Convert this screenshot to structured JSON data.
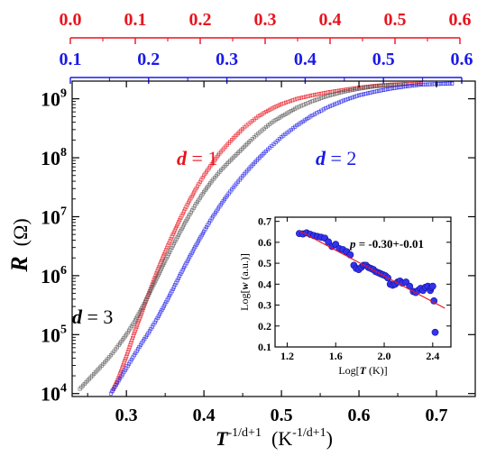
{
  "chart_data": [
    {
      "type": "scatter",
      "id": "main",
      "xlabel": {
        "base": "T",
        "exp": "-1/d+1",
        "unit_open": "(K",
        "unit_exp": "-1/d+1",
        "unit_close": ")"
      },
      "ylabel": {
        "var": "R",
        "unit": "(Ω)"
      },
      "xlim": [
        0.23,
        0.75
      ],
      "ylim_log10": [
        3.95,
        9.3
      ],
      "yscale": "log",
      "x_ticks": [
        "0.3",
        "0.4",
        "0.5",
        "0.6",
        "0.7"
      ],
      "x_tick_values": [
        0.3,
        0.4,
        0.5,
        0.6,
        0.7
      ],
      "y_ticks": [
        {
          "base": "10",
          "exp": "4",
          "value": 4
        },
        {
          "base": "10",
          "exp": "5",
          "value": 5
        },
        {
          "base": "10",
          "exp": "6",
          "value": 6
        },
        {
          "base": "10",
          "exp": "7",
          "value": 7
        },
        {
          "base": "10",
          "exp": "8",
          "value": 8
        },
        {
          "base": "10",
          "exp": "9",
          "value": 9
        }
      ],
      "top_axes": [
        {
          "color": "#e8141e",
          "lim": [
            0.0,
            0.6
          ],
          "ticks": [
            "0.0",
            "0.1",
            "0.2",
            "0.3",
            "0.4",
            "0.5",
            "0.6"
          ],
          "tick_values": [
            0.0,
            0.1,
            0.2,
            0.3,
            0.4,
            0.5,
            0.6
          ]
        },
        {
          "color": "#1a1ae8",
          "lim": [
            0.1,
            0.6
          ],
          "ticks": [
            "0.1",
            "0.2",
            "0.3",
            "0.4",
            "0.5",
            "0.6"
          ],
          "tick_values": [
            0.1,
            0.2,
            0.3,
            0.4,
            0.5,
            0.6
          ]
        }
      ],
      "series": [
        {
          "color": "#e8141e",
          "label": {
            "var": "d",
            "text": " = 1"
          },
          "points": [
            [
              0.282,
              4.05
            ],
            [
              0.285,
              4.12
            ],
            [
              0.29,
              4.27
            ],
            [
              0.3,
              4.63
            ],
            [
              0.31,
              5.02
            ],
            [
              0.32,
              5.38
            ],
            [
              0.33,
              5.74
            ],
            [
              0.34,
              6.08
            ],
            [
              0.35,
              6.4
            ],
            [
              0.36,
              6.7
            ],
            [
              0.37,
              6.98
            ],
            [
              0.38,
              7.24
            ],
            [
              0.39,
              7.48
            ],
            [
              0.4,
              7.7
            ],
            [
              0.41,
              7.89
            ],
            [
              0.42,
              8.07
            ],
            [
              0.43,
              8.22
            ],
            [
              0.44,
              8.36
            ],
            [
              0.45,
              8.49
            ],
            [
              0.46,
              8.6
            ],
            [
              0.47,
              8.7
            ],
            [
              0.48,
              8.78
            ],
            [
              0.49,
              8.85
            ],
            [
              0.5,
              8.91
            ],
            [
              0.52,
              9.0
            ],
            [
              0.54,
              9.06
            ],
            [
              0.56,
              9.11
            ],
            [
              0.58,
              9.15
            ],
            [
              0.6,
              9.19
            ],
            [
              0.62,
              9.22
            ],
            [
              0.64,
              9.24
            ],
            [
              0.66,
              9.25
            ],
            [
              0.68,
              9.26
            ]
          ]
        },
        {
          "color": "#555555",
          "label": {
            "var": "d",
            "text": " = 3"
          },
          "points": [
            [
              0.24,
              4.08
            ],
            [
              0.25,
              4.22
            ],
            [
              0.26,
              4.36
            ],
            [
              0.27,
              4.5
            ],
            [
              0.28,
              4.65
            ],
            [
              0.29,
              4.82
            ],
            [
              0.3,
              5.0
            ],
            [
              0.31,
              5.21
            ],
            [
              0.32,
              5.45
            ],
            [
              0.33,
              5.71
            ],
            [
              0.34,
              5.98
            ],
            [
              0.35,
              6.25
            ],
            [
              0.36,
              6.51
            ],
            [
              0.37,
              6.76
            ],
            [
              0.38,
              7.0
            ],
            [
              0.39,
              7.22
            ],
            [
              0.4,
              7.42
            ],
            [
              0.41,
              7.6
            ],
            [
              0.42,
              7.76
            ],
            [
              0.43,
              7.9
            ],
            [
              0.44,
              8.03
            ],
            [
              0.45,
              8.16
            ],
            [
              0.46,
              8.29
            ],
            [
              0.47,
              8.41
            ],
            [
              0.48,
              8.52
            ],
            [
              0.49,
              8.62
            ],
            [
              0.5,
              8.7
            ],
            [
              0.52,
              8.85
            ],
            [
              0.54,
              8.96
            ],
            [
              0.56,
              9.05
            ],
            [
              0.58,
              9.12
            ],
            [
              0.6,
              9.17
            ],
            [
              0.62,
              9.21
            ],
            [
              0.64,
              9.23
            ],
            [
              0.66,
              9.25
            ]
          ]
        },
        {
          "color": "#1a1ae8",
          "label": {
            "var": "d",
            "text": " = 2"
          },
          "points": [
            [
              0.28,
              4.0
            ],
            [
              0.29,
              4.22
            ],
            [
              0.3,
              4.43
            ],
            [
              0.31,
              4.65
            ],
            [
              0.32,
              4.86
            ],
            [
              0.33,
              5.06
            ],
            [
              0.34,
              5.28
            ],
            [
              0.35,
              5.52
            ],
            [
              0.36,
              5.77
            ],
            [
              0.37,
              6.03
            ],
            [
              0.38,
              6.28
            ],
            [
              0.39,
              6.52
            ],
            [
              0.4,
              6.75
            ],
            [
              0.41,
              6.97
            ],
            [
              0.42,
              7.17
            ],
            [
              0.43,
              7.36
            ],
            [
              0.44,
              7.53
            ],
            [
              0.45,
              7.69
            ],
            [
              0.46,
              7.84
            ],
            [
              0.47,
              7.98
            ],
            [
              0.48,
              8.11
            ],
            [
              0.49,
              8.23
            ],
            [
              0.5,
              8.35
            ],
            [
              0.52,
              8.55
            ],
            [
              0.54,
              8.72
            ],
            [
              0.56,
              8.86
            ],
            [
              0.58,
              8.97
            ],
            [
              0.6,
              9.06
            ],
            [
              0.62,
              9.12
            ],
            [
              0.64,
              9.17
            ],
            [
              0.66,
              9.21
            ],
            [
              0.68,
              9.24
            ],
            [
              0.7,
              9.25
            ],
            [
              0.72,
              9.26
            ]
          ]
        }
      ]
    },
    {
      "type": "scatter",
      "id": "inset",
      "xlabel": {
        "pre": "Log[",
        "var": "T",
        "post": " (K)]"
      },
      "ylabel": {
        "pre": "Log[",
        "var": "w",
        "post": " (a.u.)]"
      },
      "xlim": [
        1.1,
        2.55
      ],
      "ylim": [
        0.1,
        0.72
      ],
      "x_ticks": [
        "1.2",
        "1.6",
        "2.0",
        "2.4"
      ],
      "x_tick_values": [
        1.2,
        1.6,
        2.0,
        2.4
      ],
      "y_ticks": [
        "0.1",
        "0.2",
        "0.3",
        "0.4",
        "0.5",
        "0.6",
        "0.7"
      ],
      "y_tick_values": [
        0.1,
        0.2,
        0.3,
        0.4,
        0.5,
        0.6,
        0.7
      ],
      "annotation": {
        "var": "p",
        "text": " = -0.30+-0.01"
      },
      "fit_line": {
        "color": "#e8141e",
        "x": [
          1.3,
          2.5
        ],
        "y": [
          0.655,
          0.285
        ]
      },
      "points": [
        [
          1.3,
          0.642
        ],
        [
          1.33,
          0.64
        ],
        [
          1.36,
          0.645
        ],
        [
          1.39,
          0.638
        ],
        [
          1.42,
          0.632
        ],
        [
          1.45,
          0.628
        ],
        [
          1.48,
          0.624
        ],
        [
          1.51,
          0.62
        ],
        [
          1.54,
          0.602
        ],
        [
          1.57,
          0.58
        ],
        [
          1.6,
          0.59
        ],
        [
          1.63,
          0.57
        ],
        [
          1.66,
          0.565
        ],
        [
          1.69,
          0.555
        ],
        [
          1.72,
          0.54
        ],
        [
          1.75,
          0.49
        ],
        [
          1.77,
          0.475
        ],
        [
          1.79,
          0.47
        ],
        [
          1.81,
          0.48
        ],
        [
          1.83,
          0.49
        ],
        [
          1.85,
          0.49
        ],
        [
          1.87,
          0.48
        ],
        [
          1.89,
          0.475
        ],
        [
          1.91,
          0.47
        ],
        [
          1.93,
          0.46
        ],
        [
          1.95,
          0.455
        ],
        [
          1.97,
          0.45
        ],
        [
          1.99,
          0.445
        ],
        [
          2.01,
          0.44
        ],
        [
          2.03,
          0.43
        ],
        [
          2.05,
          0.4
        ],
        [
          2.07,
          0.395
        ],
        [
          2.09,
          0.4
        ],
        [
          2.11,
          0.41
        ],
        [
          2.13,
          0.415
        ],
        [
          2.15,
          0.405
        ],
        [
          2.18,
          0.41
        ],
        [
          2.21,
          0.39
        ],
        [
          2.24,
          0.365
        ],
        [
          2.26,
          0.36
        ],
        [
          2.28,
          0.37
        ],
        [
          2.3,
          0.38
        ],
        [
          2.32,
          0.37
        ],
        [
          2.34,
          0.385
        ],
        [
          2.36,
          0.39
        ],
        [
          2.38,
          0.37
        ],
        [
          2.39,
          0.385
        ],
        [
          2.4,
          0.39
        ],
        [
          2.41,
          0.32
        ],
        [
          2.42,
          0.17
        ]
      ]
    }
  ]
}
